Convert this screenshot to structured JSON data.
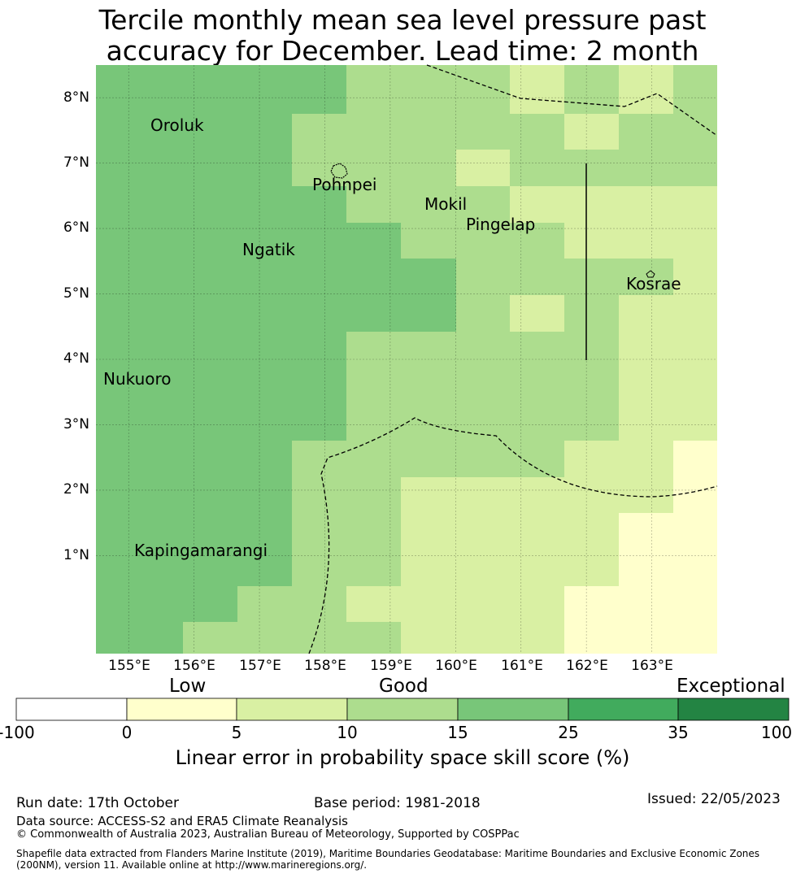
{
  "title": {
    "line1": "Tercile monthly mean sea level pressure past",
    "line2": "accuracy for December. Lead time: 2 month"
  },
  "map": {
    "lat_labels": [
      "8°N",
      "7°N",
      "6°N",
      "5°N",
      "4°N",
      "3°N",
      "2°N",
      "1°N"
    ],
    "lon_labels": [
      "155°E",
      "156°E",
      "157°E",
      "158°E",
      "159°E",
      "160°E",
      "161°E",
      "162°E",
      "163°E"
    ],
    "places": [
      {
        "name": "Oroluk"
      },
      {
        "name": "Pohnpei"
      },
      {
        "name": "Mokil"
      },
      {
        "name": "Pingelap"
      },
      {
        "name": "Ngatik"
      },
      {
        "name": "Kosrae"
      },
      {
        "name": "Nukuoro"
      },
      {
        "name": "Kapingamarangi"
      }
    ]
  },
  "legend": {
    "categories": [
      "Low",
      "Good",
      "Exceptional"
    ],
    "ticks": [
      "-100",
      "0",
      "5",
      "10",
      "15",
      "25",
      "35",
      "100"
    ],
    "colors": [
      "#ffffff",
      "#ffffcc",
      "#d9f0a3",
      "#addd8e",
      "#78c679",
      "#41ab5d",
      "#238443"
    ],
    "axis_label": "Linear error in probability space skill score (%)"
  },
  "footer": {
    "run_date": "Run date: 17th October",
    "base_period": "Base period: 1981-2018",
    "issued": "Issued: 22/05/2023",
    "data_source": "Data source: ACCESS-S2 and ERA5 Climate Reanalysis",
    "copyright": "© Commonwealth of Australia 2023, Australian Bureau of Meteorology, Supported by COSPPac",
    "shapefile": "Shapefile data extracted from Flanders Marine Institute (2019), Maritime Boundaries Geodatabase: Maritime Boundaries and Exclusive Economic Zones (200NM), version 11. Available online at http://www.marineregions.org/."
  }
}
